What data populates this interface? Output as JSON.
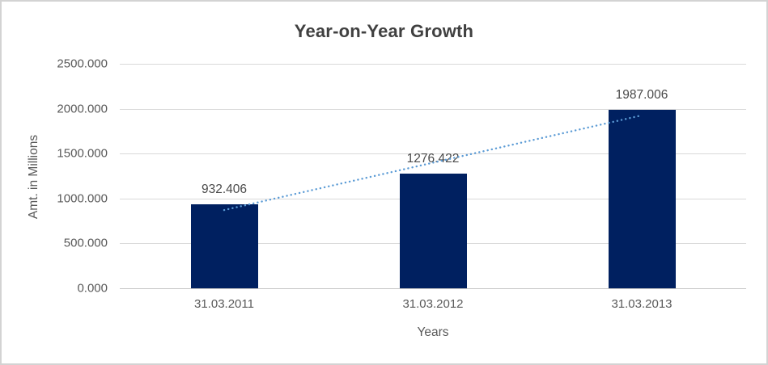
{
  "chart_data": {
    "type": "bar",
    "title": "Year-on-Year Growth",
    "xlabel": "Years",
    "ylabel": "Amt. in Millions",
    "categories": [
      "31.03.2011",
      "31.03.2012",
      "31.03.2013"
    ],
    "values": [
      932.406,
      1276.422,
      1987.006
    ],
    "value_labels": [
      "932.406",
      "1276.422",
      "1987.006"
    ],
    "yticks": [
      {
        "value": 2500,
        "label": "2500.000"
      },
      {
        "value": 2000,
        "label": "2000.000"
      },
      {
        "value": 1500,
        "label": "1500.000"
      },
      {
        "value": 1000,
        "label": "1000.000"
      },
      {
        "value": 500,
        "label": "500.000"
      },
      {
        "value": 0,
        "label": "0.000"
      }
    ],
    "ylim": [
      0,
      2500
    ],
    "grid": true,
    "legend": "none",
    "trendline": {
      "type": "linear",
      "style": "dotted",
      "color": "#5B9BD5"
    },
    "colors": {
      "bar": "#002060",
      "gridline": "#D9D9D9",
      "axis_line": "#C6C6C6",
      "tick_text": "#595959",
      "title_text": "#404040",
      "axis_title_text": "#595959",
      "data_label_text": "#4A4A4A",
      "chart_border": "#D3D3D3"
    }
  }
}
